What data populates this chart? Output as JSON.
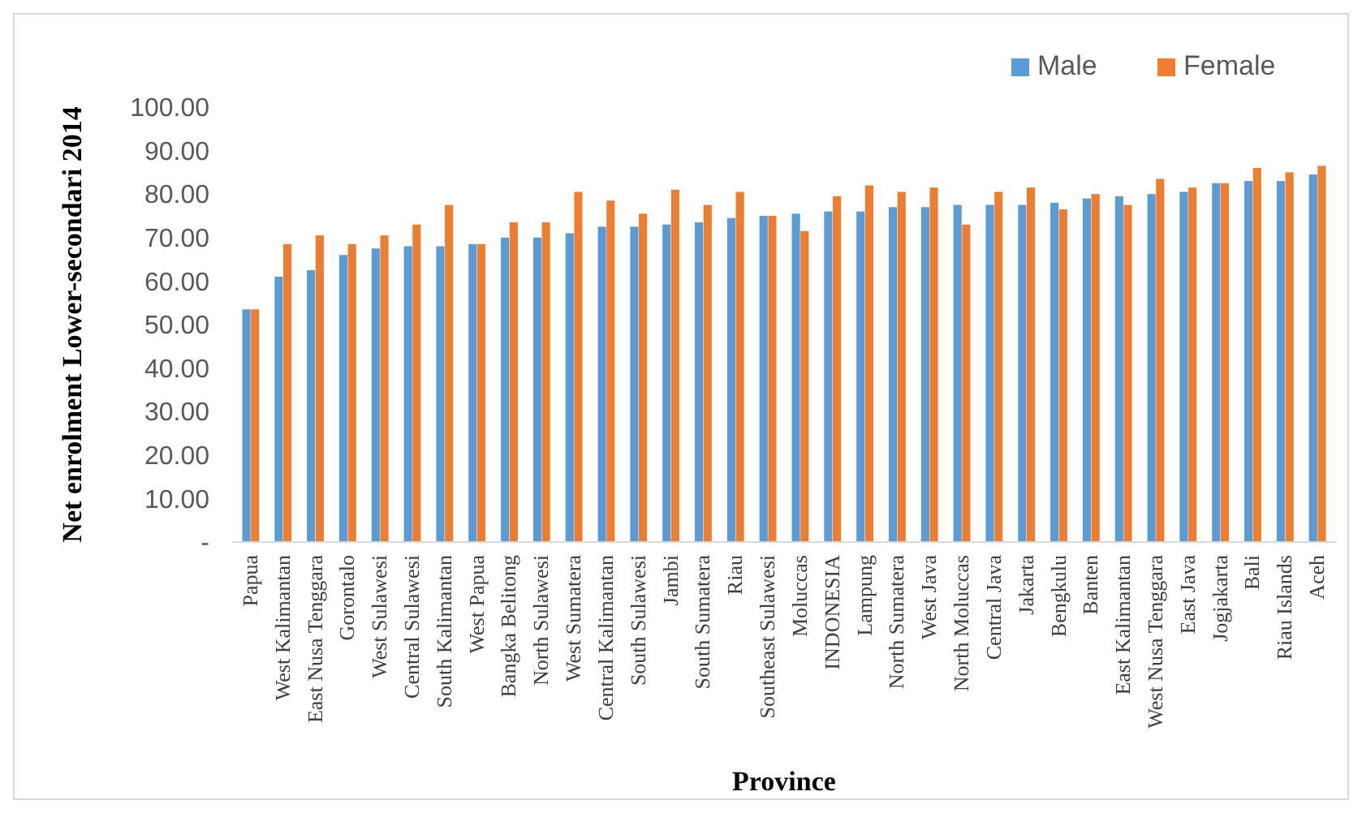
{
  "chart_data": {
    "type": "bar",
    "xlabel": "Province",
    "ylabel": "Net enrolment Lower-secondari 2014",
    "categories": [
      "Papua",
      "West Kalimantan",
      "East Nusa Tenggara",
      "Gorontalo",
      "West Sulawesi",
      "Central Sulawesi",
      "South Kalimantan",
      "West Papua",
      "Bangka Belitong",
      "North Sulawesi",
      "West Sumatera",
      "Central Kalimantan",
      "South Sulawesi",
      "Jambi",
      "South Sumatera",
      "Riau",
      "Southeast Sulawesi",
      "Moluccas",
      "INDONESIA",
      "Lampung",
      "North Sumatera",
      "West Java",
      "North Moluccas",
      "Central Java",
      "Jakarta",
      "Bengkulu",
      "Banten",
      "East Kalimantan",
      "West Nusa Tenggara",
      "East Java",
      "Jogjakarta",
      "Bali",
      "Riau Islands",
      "Aceh"
    ],
    "series": [
      {
        "name": "Male",
        "color": "#5b9bd5",
        "values": [
          53.5,
          61,
          62.5,
          66,
          67.5,
          68,
          68,
          68.5,
          70,
          70,
          71,
          72.5,
          72.5,
          73,
          73.5,
          74.5,
          75,
          75.5,
          76,
          76,
          77,
          77,
          77.5,
          77.5,
          77.5,
          78,
          79,
          79.5,
          80,
          80.5,
          82.5,
          83,
          83,
          84.5
        ]
      },
      {
        "name": "Female",
        "color": "#ed7d31",
        "values": [
          53.5,
          68.5,
          70.5,
          68.5,
          70.5,
          73,
          77.5,
          68.5,
          73.5,
          73.5,
          80.5,
          78.5,
          75.5,
          81,
          77.5,
          80.5,
          75,
          71.5,
          79.5,
          82,
          80.5,
          81.5,
          73,
          80.5,
          81.5,
          76.5,
          80,
          77.5,
          83.5,
          81.5,
          82.5,
          86,
          85,
          86.5
        ]
      }
    ],
    "ylim": [
      0,
      100
    ],
    "yticks": [
      {
        "value": 0,
        "label": "-"
      },
      {
        "value": 10,
        "label": "10.00"
      },
      {
        "value": 20,
        "label": "20.00"
      },
      {
        "value": 30,
        "label": "30.00"
      },
      {
        "value": 40,
        "label": "40.00"
      },
      {
        "value": 50,
        "label": "50.00"
      },
      {
        "value": 60,
        "label": "60.00"
      },
      {
        "value": 70,
        "label": "70.00"
      },
      {
        "value": 80,
        "label": "80.00"
      },
      {
        "value": 90,
        "label": "90.00"
      },
      {
        "value": 100,
        "label": "100.00"
      }
    ],
    "grid": false,
    "legend": "top right"
  }
}
